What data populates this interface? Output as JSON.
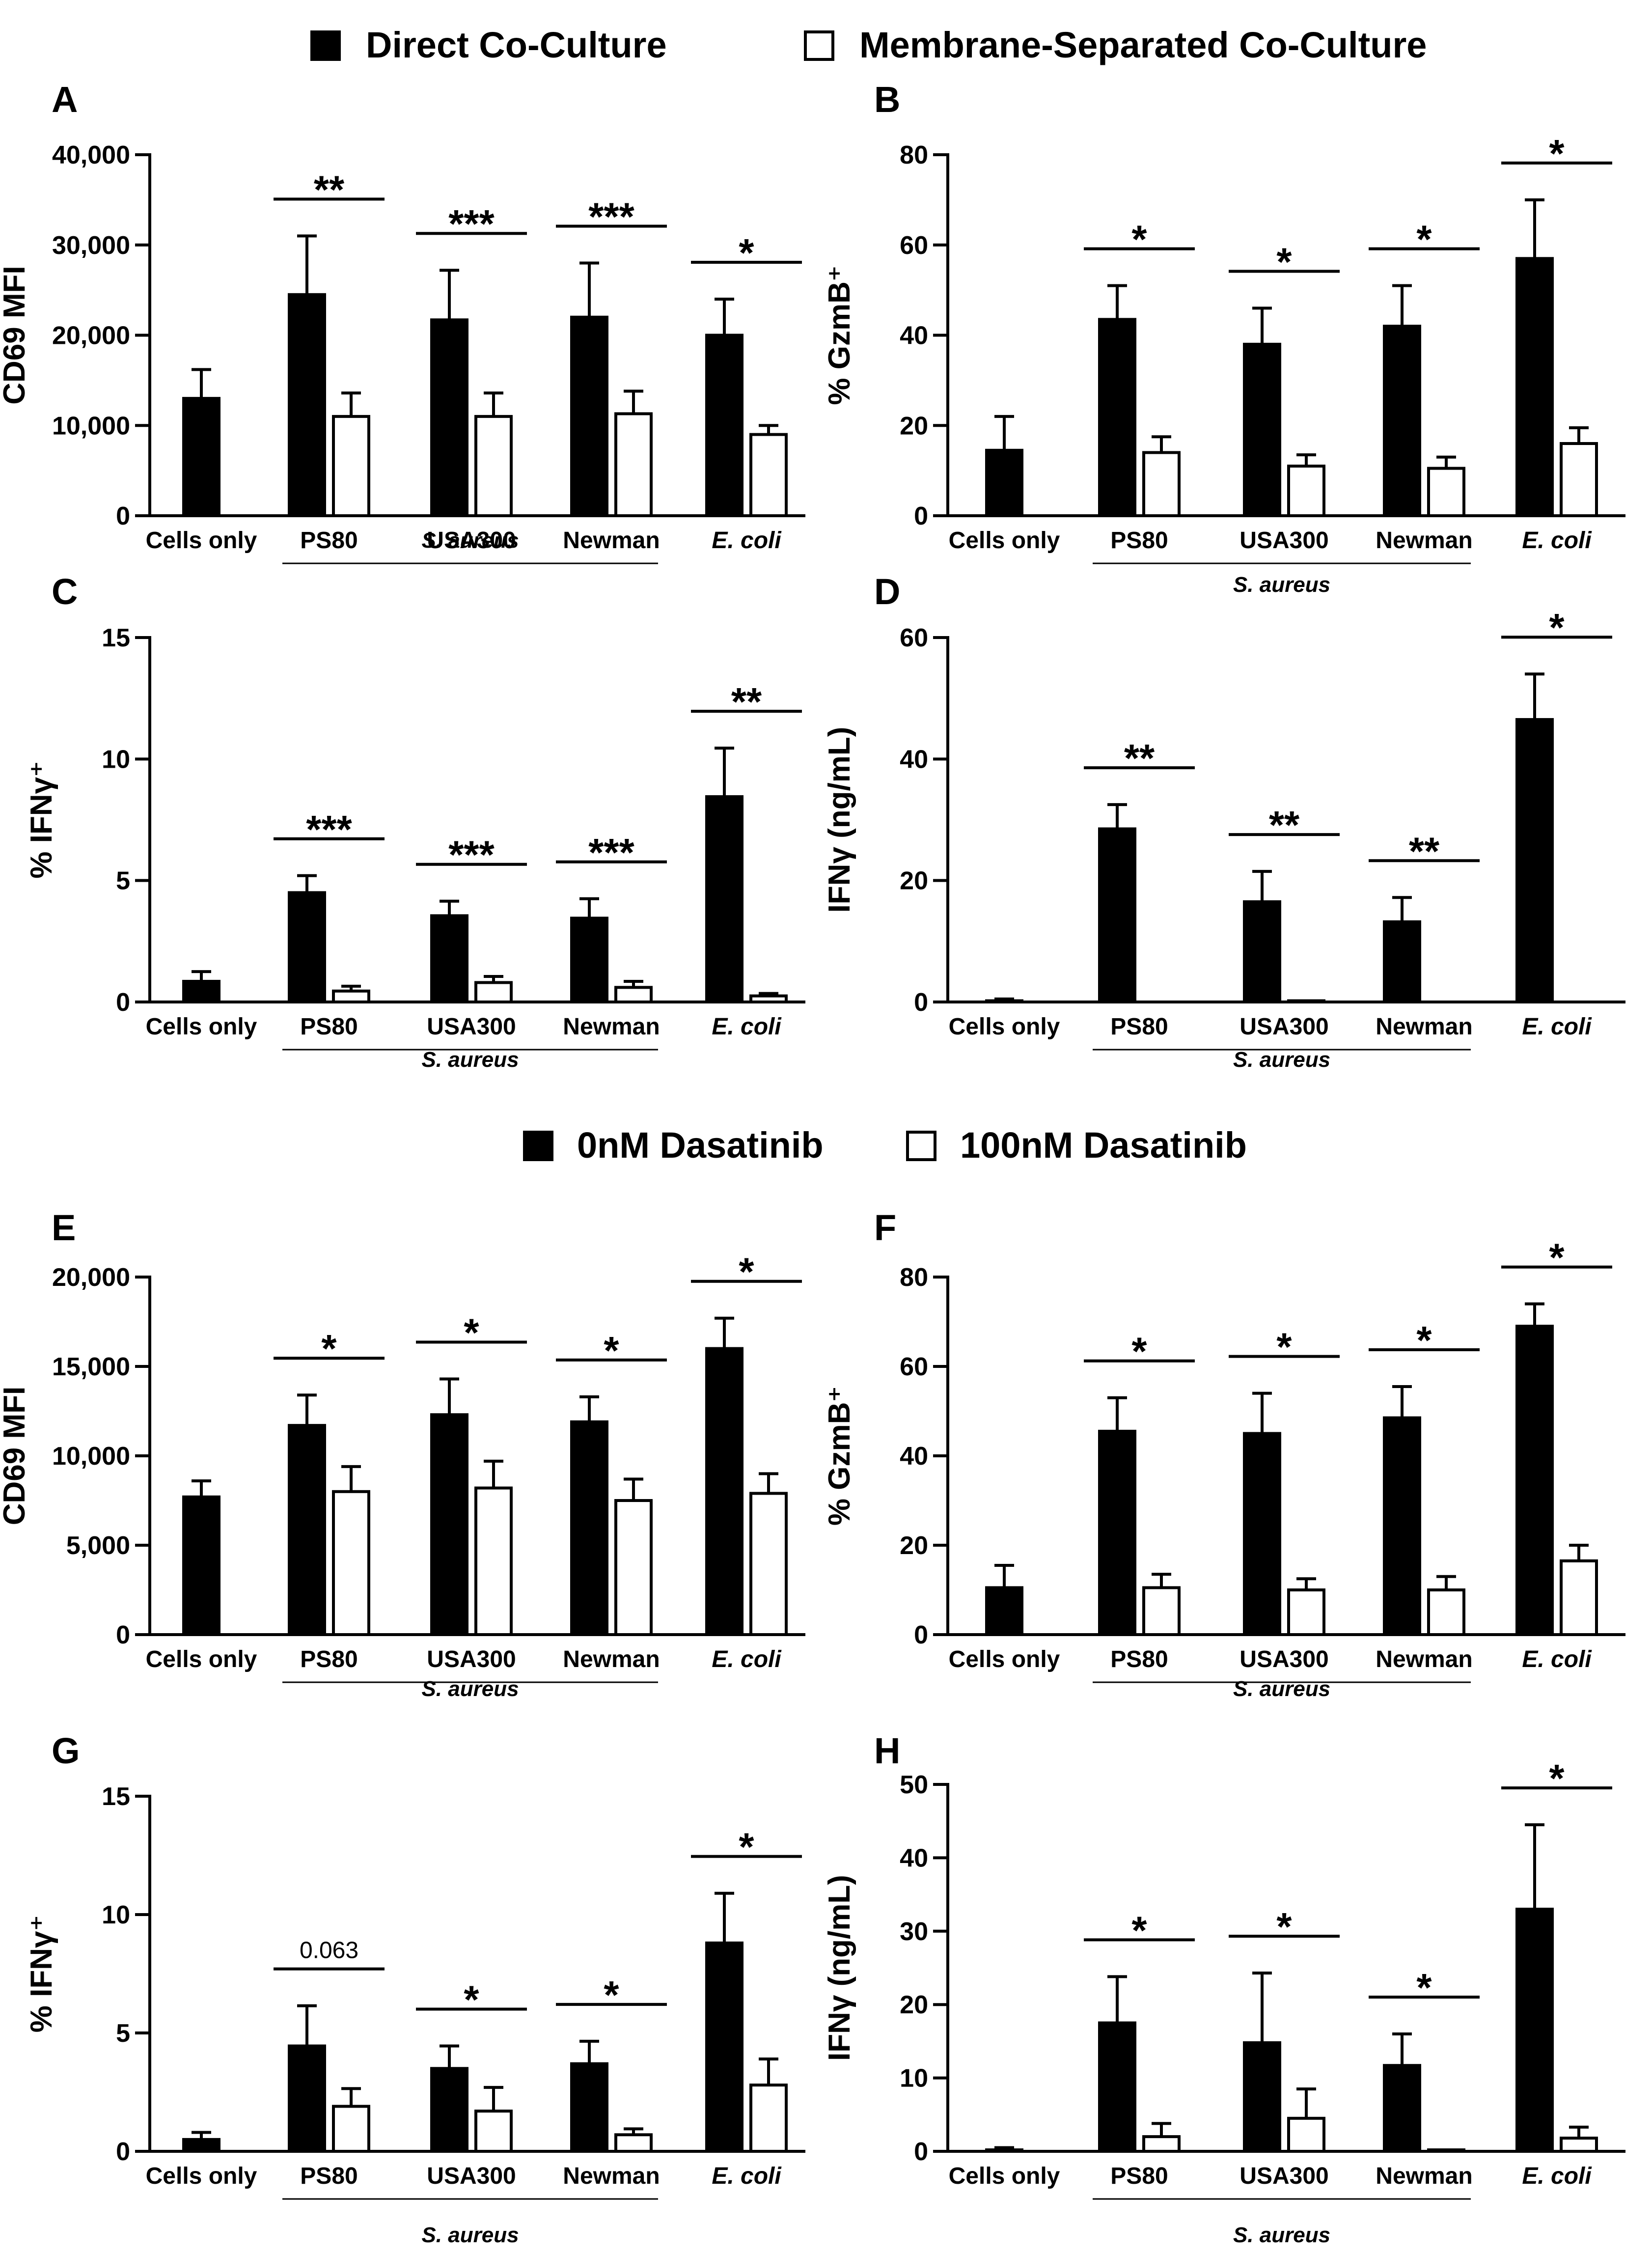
{
  "legends": [
    {
      "items": [
        {
          "label": "Direct Co-Culture",
          "swatch": "#000000"
        },
        {
          "label": "Membrane-Separated Co-Culture",
          "swatch": "#ffffff"
        }
      ]
    },
    {
      "items": [
        {
          "label": "0nM Dasatinib",
          "swatch": "#000000"
        },
        {
          "label": "100nM Dasatinib",
          "swatch": "#ffffff"
        }
      ]
    }
  ],
  "group_caption": "S. aureus",
  "chart_data": [
    {
      "panel": "A",
      "type": "bar",
      "ylabel": "CD69 MFI",
      "ylim": [
        0,
        40000
      ],
      "yticks": [
        0,
        10000,
        20000,
        30000,
        40000
      ],
      "ytick_labels": [
        "0",
        "10,000",
        "20,000",
        "30,000",
        "40,000"
      ],
      "categories": [
        "Cells only",
        "PS80",
        "USA300",
        "Newman",
        "E. coli"
      ],
      "series": [
        {
          "name": "Direct Co-Culture",
          "values": [
            13000,
            24500,
            21700,
            22000,
            20000
          ],
          "errors": [
            3200,
            6500,
            5500,
            6000,
            4000
          ]
        },
        {
          "name": "Membrane-Separated Co-Culture",
          "values": [
            null,
            11000,
            11000,
            11300,
            9000
          ],
          "errors": [
            null,
            2600,
            2600,
            2500,
            1000
          ]
        }
      ],
      "significance": [
        "",
        "**",
        "***",
        "***",
        "*"
      ]
    },
    {
      "panel": "B",
      "type": "bar",
      "ylabel": "% GzmB⁺",
      "ylim": [
        0,
        80
      ],
      "yticks": [
        0,
        20,
        40,
        60,
        80
      ],
      "ytick_labels": [
        "0",
        "20",
        "40",
        "60",
        "80"
      ],
      "categories": [
        "Cells only",
        "PS80",
        "USA300",
        "Newman",
        "E. coli"
      ],
      "series": [
        {
          "name": "Direct Co-Culture",
          "values": [
            14.5,
            43.5,
            38,
            42,
            57
          ],
          "errors": [
            7.5,
            7.5,
            8,
            9,
            13
          ]
        },
        {
          "name": "Membrane-Separated Co-Culture",
          "values": [
            null,
            14,
            11,
            10.5,
            16
          ],
          "errors": [
            null,
            3.5,
            2.5,
            2.5,
            3.5
          ]
        }
      ],
      "significance": [
        "",
        "*",
        "*",
        "*",
        "*"
      ]
    },
    {
      "panel": "C",
      "type": "bar",
      "ylabel": "% IFNγ⁺",
      "ylim": [
        0,
        15
      ],
      "yticks": [
        0,
        5,
        10,
        15
      ],
      "ytick_labels": [
        "0",
        "5",
        "10",
        "15"
      ],
      "categories": [
        "Cells only",
        "PS80",
        "USA300",
        "Newman",
        "E. coli"
      ],
      "series": [
        {
          "name": "Direct Co-Culture",
          "values": [
            0.85,
            4.5,
            3.55,
            3.45,
            8.45
          ],
          "errors": [
            0.4,
            0.7,
            0.6,
            0.8,
            2.0
          ]
        },
        {
          "name": "Membrane-Separated Co-Culture",
          "values": [
            null,
            0.45,
            0.8,
            0.6,
            0.25
          ],
          "errors": [
            null,
            0.2,
            0.25,
            0.25,
            0.1
          ]
        }
      ],
      "significance": [
        "",
        "***",
        "***",
        "***",
        "**"
      ]
    },
    {
      "panel": "D",
      "type": "bar",
      "ylabel": "IFNγ (ng/mL)",
      "ylim": [
        0,
        60
      ],
      "yticks": [
        0,
        20,
        40,
        60
      ],
      "ytick_labels": [
        "0",
        "20",
        "40",
        "60"
      ],
      "categories": [
        "Cells only",
        "PS80",
        "USA300",
        "Newman",
        "E. coli"
      ],
      "series": [
        {
          "name": "Direct Co-Culture",
          "values": [
            0.2,
            28.5,
            16.5,
            13.2,
            46.5
          ],
          "errors": [
            0.3,
            4,
            5,
            4,
            7.5
          ]
        },
        {
          "name": "Membrane-Separated Co-Culture",
          "values": [
            null,
            0,
            0.2,
            0,
            0
          ],
          "errors": [
            null,
            0,
            0,
            0,
            0
          ]
        }
      ],
      "significance": [
        "",
        "**",
        "**",
        "**",
        "*"
      ]
    },
    {
      "panel": "E",
      "type": "bar",
      "ylabel": "CD69  MFI",
      "ylim": [
        0,
        20000
      ],
      "yticks": [
        0,
        5000,
        10000,
        15000,
        20000
      ],
      "ytick_labels": [
        "0",
        "5,000",
        "10,000",
        "15,000",
        "20,000"
      ],
      "categories": [
        "Cells only",
        "PS80",
        "USA300",
        "Newman",
        "E. coli"
      ],
      "series": [
        {
          "name": "0nM Dasatinib",
          "values": [
            7700,
            11700,
            12300,
            11900,
            16000
          ],
          "errors": [
            900,
            1700,
            2000,
            1400,
            1700
          ]
        },
        {
          "name": "100nM Dasatinib",
          "values": [
            null,
            8000,
            8200,
            7500,
            7900
          ],
          "errors": [
            null,
            1400,
            1500,
            1200,
            1100
          ]
        }
      ],
      "significance": [
        "",
        "*",
        "*",
        "*",
        "*"
      ]
    },
    {
      "panel": "F",
      "type": "bar",
      "ylabel": "% GzmB⁺",
      "ylim": [
        0,
        80
      ],
      "yticks": [
        0,
        20,
        40,
        60,
        80
      ],
      "ytick_labels": [
        "0",
        "20",
        "40",
        "60",
        "80"
      ],
      "categories": [
        "Cells only",
        "PS80",
        "USA300",
        "Newman",
        "E. coli"
      ],
      "series": [
        {
          "name": "0nM Dasatinib",
          "values": [
            10.5,
            45.5,
            45,
            48.5,
            69
          ],
          "errors": [
            5,
            7.5,
            9,
            7,
            5
          ]
        },
        {
          "name": "100nM Dasatinib",
          "values": [
            null,
            10.5,
            10,
            10,
            16.5
          ],
          "errors": [
            null,
            3,
            2.5,
            3,
            3.5
          ]
        }
      ],
      "significance": [
        "",
        "*",
        "*",
        "*",
        "*"
      ]
    },
    {
      "panel": "G",
      "type": "bar",
      "ylabel": "% IFNγ⁺",
      "ylim": [
        0,
        15
      ],
      "yticks": [
        0,
        5,
        10,
        15
      ],
      "ytick_labels": [
        "0",
        "5",
        "10",
        "15"
      ],
      "categories": [
        "Cells only",
        "PS80",
        "USA300",
        "Newman",
        "E. coli"
      ],
      "series": [
        {
          "name": "0nM Dasatinib",
          "values": [
            0.5,
            4.45,
            3.5,
            3.7,
            8.8
          ],
          "errors": [
            0.3,
            1.7,
            0.95,
            0.95,
            2.1
          ]
        },
        {
          "name": "100nM Dasatinib",
          "values": [
            null,
            1.9,
            1.7,
            0.7,
            2.8
          ],
          "errors": [
            null,
            0.75,
            1.0,
            0.25,
            1.1
          ]
        }
      ],
      "significance": [
        "",
        "0.063",
        "*",
        "*",
        "*"
      ]
    },
    {
      "panel": "H",
      "type": "bar",
      "ylabel": "IFNγ (ng/mL)",
      "ylim": [
        0,
        50
      ],
      "yticks": [
        0,
        10,
        20,
        30,
        40,
        50
      ],
      "ytick_labels": [
        "0",
        "10",
        "20",
        "30",
        "40",
        "50"
      ],
      "categories": [
        "Cells only",
        "PS80",
        "USA300",
        "Newman",
        "E. coli"
      ],
      "series": [
        {
          "name": "0nM Dasatinib",
          "values": [
            0.2,
            17.5,
            14.8,
            11.7,
            33
          ],
          "errors": [
            0.3,
            6.3,
            9.5,
            4.3,
            11.5
          ]
        },
        {
          "name": "100nM Dasatinib",
          "values": [
            null,
            2,
            4.5,
            0.2,
            1.8
          ],
          "errors": [
            null,
            1.8,
            4,
            0,
            1.5
          ]
        }
      ],
      "significance": [
        "",
        "*",
        "*",
        "*",
        "*"
      ]
    }
  ]
}
